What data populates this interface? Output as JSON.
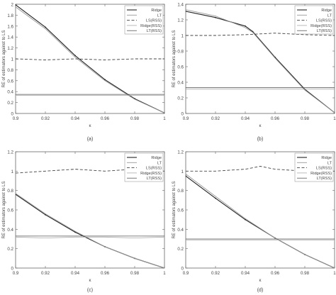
{
  "chart_data": [
    {
      "type": "line",
      "panel_label": "(a)",
      "xlabel": "κ",
      "ylabel": "RE of estimators against to LS",
      "xlim": [
        0.9,
        1.0
      ],
      "ylim": [
        0,
        2
      ],
      "xticks": [
        "0.9",
        "0.92",
        "0.94",
        "0.96",
        "0.98",
        "1"
      ],
      "yticks": [
        "0",
        "0.2",
        "0.4",
        "0.6",
        "0.8",
        "1",
        "1.2",
        "1.4",
        "1.6",
        "1.8",
        "2"
      ],
      "legend_position": "top-right",
      "series": [
        {
          "name": "Ridge",
          "x": [
            0.9,
            0.92,
            0.94,
            0.96,
            0.98,
            1.0
          ],
          "y": [
            1.99,
            1.58,
            1.06,
            0.62,
            0.27,
            0.01
          ]
        },
        {
          "name": "LT",
          "x": [
            0.9,
            0.92,
            0.94,
            0.96,
            0.98,
            1.0
          ],
          "y": [
            1.95,
            1.55,
            1.03,
            0.6,
            0.26,
            0.01
          ]
        },
        {
          "name": "LS(RSS)",
          "x": [
            0.9,
            0.92,
            0.94,
            0.96,
            0.98,
            1.0
          ],
          "y": [
            1.0,
            0.98,
            1.0,
            0.98,
            1.0,
            1.0
          ]
        },
        {
          "name": "Ridge(RSS)",
          "x": [
            0.9,
            0.92,
            0.94,
            0.96,
            0.98,
            1.0
          ],
          "y": [
            0.33,
            0.33,
            0.33,
            0.33,
            0.33,
            0.33
          ]
        },
        {
          "name": "LT(RSS)",
          "x": [
            0.9,
            0.92,
            0.94,
            0.96,
            0.98,
            1.0
          ],
          "y": [
            0.35,
            0.35,
            0.35,
            0.35,
            0.35,
            0.35
          ]
        }
      ]
    },
    {
      "type": "line",
      "panel_label": "(b)",
      "xlabel": "κ",
      "ylabel": "RE of estimators against to LS",
      "xlim": [
        0.9,
        1.0
      ],
      "ylim": [
        0,
        1.4
      ],
      "xticks": [
        "0.9",
        "0.92",
        "0.94",
        "0.96",
        "0.98",
        "1"
      ],
      "yticks": [
        "0",
        "0.2",
        "0.4",
        "0.6",
        "0.8",
        "1",
        "1.2",
        "1.4"
      ],
      "legend_position": "top-right",
      "series": [
        {
          "name": "Ridge",
          "x": [
            0.9,
            0.92,
            0.94,
            0.945,
            0.96,
            0.98,
            1.0
          ],
          "y": [
            1.31,
            1.23,
            1.12,
            1.05,
            0.72,
            0.31,
            0.01
          ]
        },
        {
          "name": "LT",
          "x": [
            0.9,
            0.92,
            0.94,
            0.945,
            0.96,
            0.98,
            1.0
          ],
          "y": [
            1.33,
            1.25,
            1.1,
            1.04,
            0.71,
            0.3,
            0.01
          ]
        },
        {
          "name": "LS(RSS)",
          "x": [
            0.9,
            0.92,
            0.94,
            0.96,
            0.98,
            1.0
          ],
          "y": [
            1.0,
            1.0,
            1.01,
            1.03,
            1.01,
            1.0
          ]
        },
        {
          "name": "Ridge(RSS)",
          "x": [
            0.9,
            0.92,
            0.94,
            0.96,
            0.98,
            1.0
          ],
          "y": [
            0.31,
            0.31,
            0.31,
            0.31,
            0.31,
            0.31
          ]
        },
        {
          "name": "LT(RSS)",
          "x": [
            0.9,
            0.92,
            0.94,
            0.96,
            0.98,
            1.0
          ],
          "y": [
            0.33,
            0.33,
            0.33,
            0.33,
            0.33,
            0.33
          ]
        }
      ]
    },
    {
      "type": "line",
      "panel_label": "(c)",
      "xlabel": "κ",
      "ylabel": "RE of estimators against to LS",
      "xlim": [
        0.9,
        1.0
      ],
      "ylim": [
        0,
        1.2
      ],
      "xticks": [
        "0.9",
        "0.92",
        "0.94",
        "0.96",
        "0.98",
        "1"
      ],
      "yticks": [
        "0",
        "0.2",
        "0.4",
        "0.6",
        "0.8",
        "1",
        "1.2"
      ],
      "legend_position": "top-right",
      "series": [
        {
          "name": "Ridge",
          "x": [
            0.9,
            0.92,
            0.94,
            0.96,
            0.98,
            1.0
          ],
          "y": [
            0.76,
            0.55,
            0.37,
            0.22,
            0.1,
            0.0
          ]
        },
        {
          "name": "LT",
          "x": [
            0.9,
            0.92,
            0.94,
            0.96,
            0.98,
            1.0
          ],
          "y": [
            0.77,
            0.56,
            0.38,
            0.22,
            0.1,
            0.0
          ]
        },
        {
          "name": "LS(RSS)",
          "x": [
            0.9,
            0.92,
            0.94,
            0.96,
            0.98,
            1.0
          ],
          "y": [
            0.98,
            1.0,
            1.02,
            1.0,
            1.02,
            1.0
          ]
        },
        {
          "name": "Ridge(RSS)",
          "x": [
            0.9,
            0.92,
            0.94,
            0.96,
            0.98,
            1.0
          ],
          "y": [
            0.32,
            0.31,
            0.32,
            0.32,
            0.31,
            0.32
          ]
        },
        {
          "name": "LT(RSS)",
          "x": [
            0.9,
            0.92,
            0.94,
            0.96,
            0.98,
            1.0
          ],
          "y": [
            0.33,
            0.33,
            0.33,
            0.33,
            0.33,
            0.33
          ]
        }
      ]
    },
    {
      "type": "line",
      "panel_label": "(d)",
      "xlabel": "κ",
      "ylabel": "RE of estimators against to LS",
      "xlim": [
        0.9,
        1.0
      ],
      "ylim": [
        0,
        1.2
      ],
      "xticks": [
        "0.9",
        "0.92",
        "0.94",
        "0.96",
        "0.98",
        "1"
      ],
      "yticks": [
        "0",
        "0.2",
        "0.4",
        "0.6",
        "0.8",
        "1",
        "1.2"
      ],
      "legend_position": "top-right",
      "series": [
        {
          "name": "Ridge",
          "x": [
            0.9,
            0.92,
            0.94,
            0.96,
            0.98,
            1.0
          ],
          "y": [
            0.95,
            0.72,
            0.5,
            0.31,
            0.14,
            0.0
          ]
        },
        {
          "name": "LT",
          "x": [
            0.9,
            0.92,
            0.94,
            0.96,
            0.98,
            1.0
          ],
          "y": [
            0.97,
            0.74,
            0.51,
            0.31,
            0.14,
            0.0
          ]
        },
        {
          "name": "LS(RSS)",
          "x": [
            0.9,
            0.92,
            0.94,
            0.95,
            0.96,
            0.98,
            1.0
          ],
          "y": [
            1.0,
            1.0,
            1.02,
            1.05,
            1.02,
            1.0,
            1.0
          ]
        },
        {
          "name": "Ridge(RSS)",
          "x": [
            0.9,
            0.92,
            0.94,
            0.96,
            0.98,
            1.0
          ],
          "y": [
            0.29,
            0.29,
            0.29,
            0.29,
            0.29,
            0.29
          ]
        },
        {
          "name": "LT(RSS)",
          "x": [
            0.9,
            0.92,
            0.94,
            0.96,
            0.98,
            1.0
          ],
          "y": [
            0.3,
            0.3,
            0.3,
            0.3,
            0.3,
            0.3
          ]
        }
      ]
    }
  ]
}
